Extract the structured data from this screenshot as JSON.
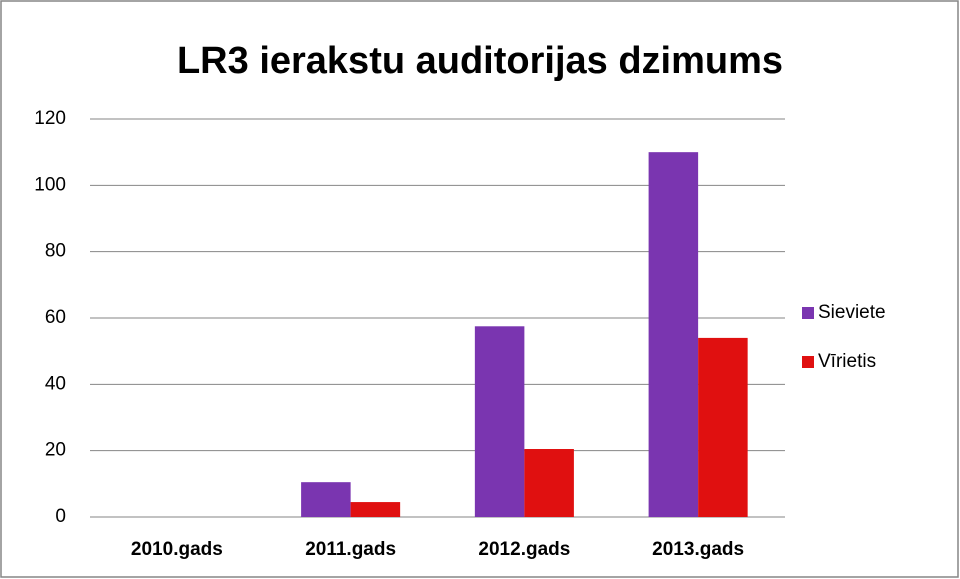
{
  "chart_data": {
    "type": "bar",
    "title": "LR3 ierakstu auditorijas dzimums",
    "categories": [
      "2010.gads",
      "2011.gads",
      "2012.gads",
      "2013.gads"
    ],
    "series": [
      {
        "name": "Sieviete",
        "color": "#7a35b0",
        "values": [
          0,
          10.5,
          57.5,
          110
        ]
      },
      {
        "name": "Vīrietis",
        "color": "#e01010",
        "values": [
          0,
          4.5,
          20.5,
          54
        ]
      }
    ],
    "ylim": [
      0,
      120
    ],
    "yticks": [
      0,
      20,
      40,
      60,
      80,
      100,
      120
    ],
    "grid": true,
    "legend": "right"
  }
}
